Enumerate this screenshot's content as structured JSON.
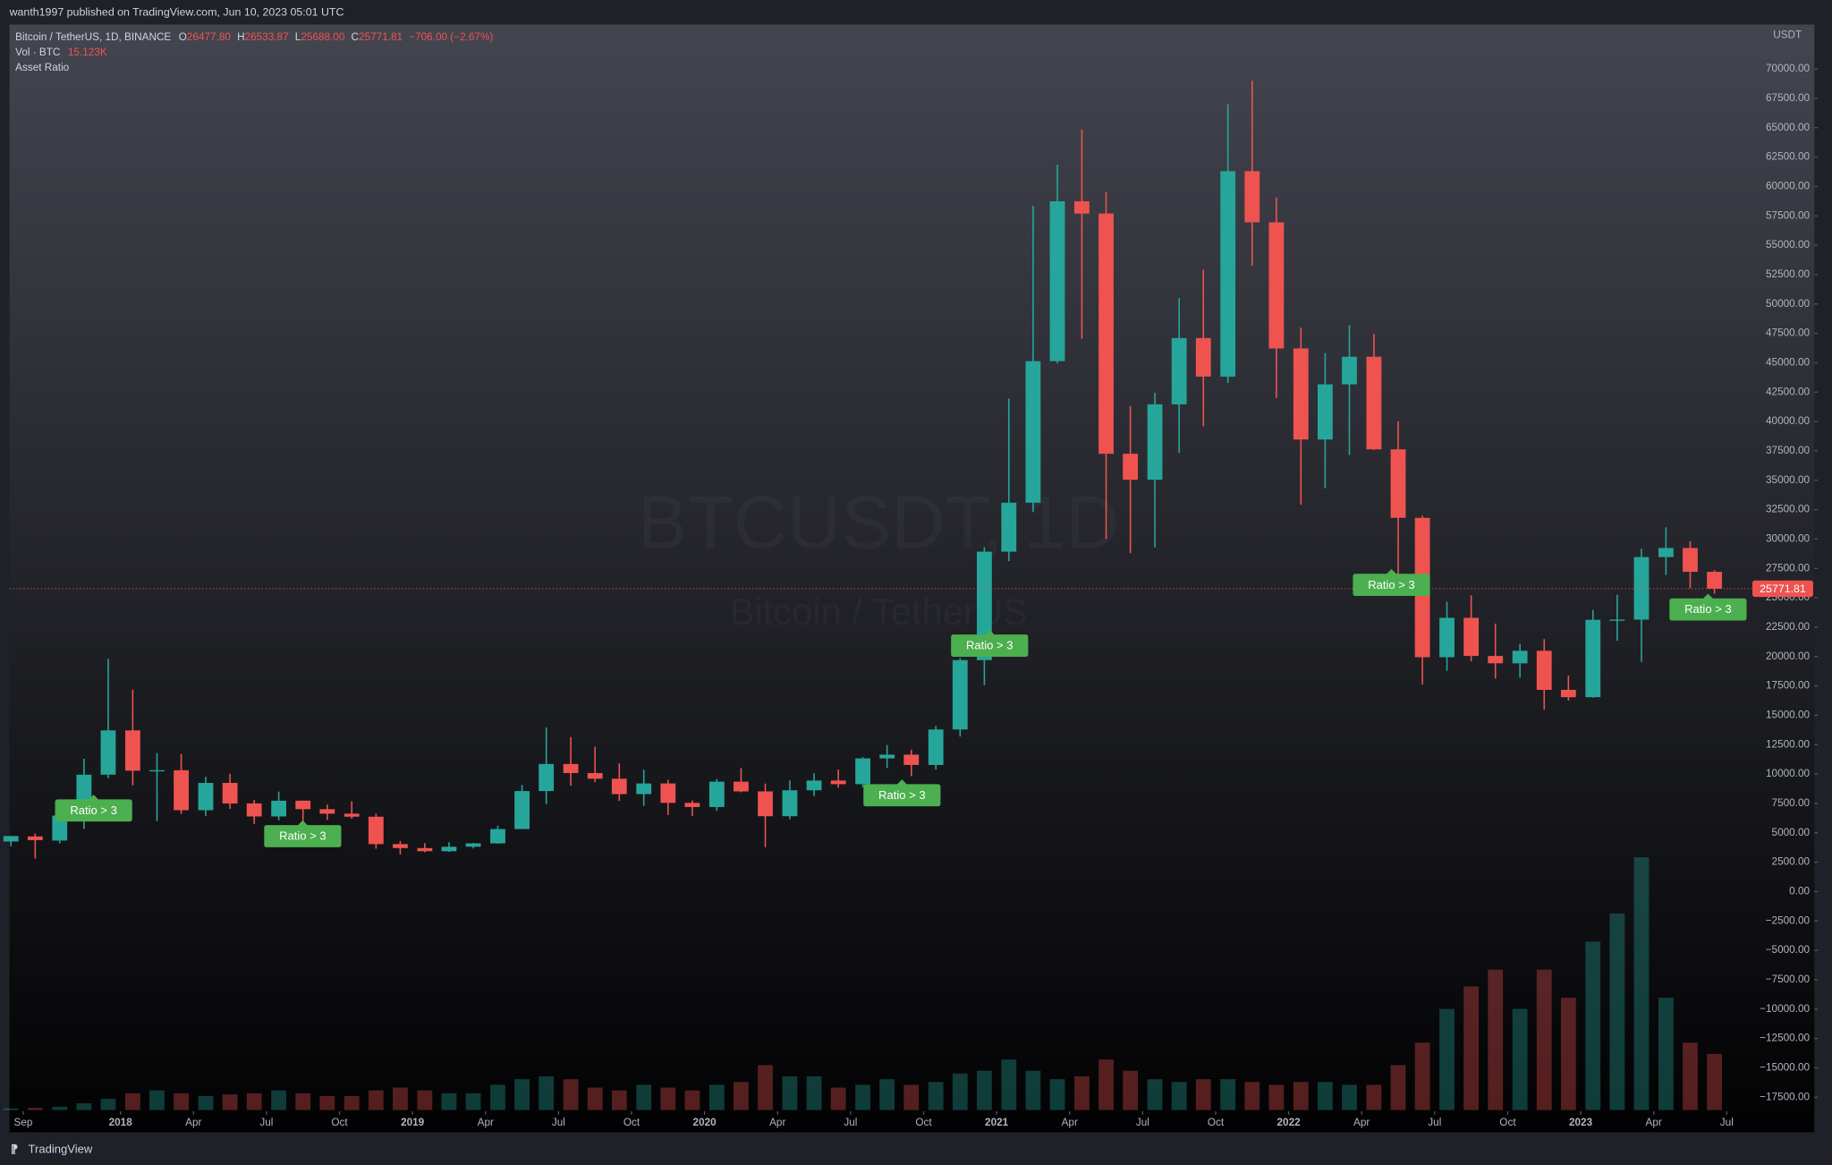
{
  "header": {
    "published": "wanth1997 published on TradingView.com, Jun 10, 2023 05:01 UTC",
    "symbol": "Bitcoin / TetherUS, 1D, BINANCE",
    "o_label": "O",
    "o": "26477.80",
    "h_label": "H",
    "h": "26533.87",
    "l_label": "L",
    "l": "25688.00",
    "c_label": "C",
    "c": "25771.81",
    "change": "−706.00 (−2.67%)",
    "volume_label": "Vol · BTC",
    "volume_value": "15.123K",
    "indicator": "Asset Ratio",
    "watermark_symbol": "BTCUSDT, 1D",
    "watermark_name": "Bitcoin / TetherUS",
    "footer": "TradingView"
  },
  "chart_data": {
    "type": "candlestick",
    "axis_unit": "USDT",
    "up_color": "#26a69a",
    "down_color": "#ef5350",
    "xlim": [
      2017.62,
      2023.576
    ],
    "ylim": [
      -18594,
      73779
    ],
    "xticks": [
      {
        "value": 2017.667,
        "label": "Sep"
      },
      2018,
      {
        "value": 2018.25,
        "label": "Apr"
      },
      {
        "value": 2018.5,
        "label": "Jul"
      },
      {
        "value": 2018.75,
        "label": "Oct"
      },
      2019,
      {
        "value": 2019.25,
        "label": "Apr"
      },
      {
        "value": 2019.5,
        "label": "Jul"
      },
      {
        "value": 2019.75,
        "label": "Oct"
      },
      2020,
      {
        "value": 2020.25,
        "label": "Apr"
      },
      {
        "value": 2020.5,
        "label": "Jul"
      },
      {
        "value": 2020.75,
        "label": "Oct"
      },
      2021,
      {
        "value": 2021.25,
        "label": "Apr"
      },
      {
        "value": 2021.5,
        "label": "Jul"
      },
      {
        "value": 2021.75,
        "label": "Oct"
      },
      2022,
      {
        "value": 2022.25,
        "label": "Apr"
      },
      {
        "value": 2022.5,
        "label": "Jul"
      },
      {
        "value": 2022.75,
        "label": "Oct"
      },
      2023,
      {
        "value": 2023.25,
        "label": "Apr"
      },
      {
        "value": 2023.5,
        "label": "Jul"
      }
    ],
    "yticks": [
      {
        "value": 70000,
        "label": "70000.00"
      },
      {
        "value": 67500,
        "label": "67500.00"
      },
      {
        "value": 65000,
        "label": "65000.00"
      },
      {
        "value": 62500,
        "label": "62500.00"
      },
      {
        "value": 60000,
        "label": "60000.00"
      },
      {
        "value": 57500,
        "label": "57500.00"
      },
      {
        "value": 55000,
        "label": "55000.00"
      },
      {
        "value": 52500,
        "label": "52500.00"
      },
      {
        "value": 50000,
        "label": "50000.00"
      },
      {
        "value": 47500,
        "label": "47500.00"
      },
      {
        "value": 45000,
        "label": "45000.00"
      },
      {
        "value": 42500,
        "label": "42500.00"
      },
      {
        "value": 40000,
        "label": "40000.00"
      },
      {
        "value": 37500,
        "label": "37500.00"
      },
      {
        "value": 35000,
        "label": "35000.00"
      },
      {
        "value": 32500,
        "label": "32500.00"
      },
      {
        "value": 30000,
        "label": "30000.00"
      },
      {
        "value": 27500,
        "label": "27500.00"
      },
      {
        "value": 25000,
        "label": "25000.00"
      },
      {
        "value": 22500,
        "label": "22500.00"
      },
      {
        "value": 20000,
        "label": "20000.00"
      },
      {
        "value": 17500,
        "label": "17500.00"
      },
      {
        "value": 15000,
        "label": "15000.00"
      },
      {
        "value": 12500,
        "label": "12500.00"
      },
      {
        "value": 10000,
        "label": "10000.00"
      },
      {
        "value": 7500,
        "label": "7500.00"
      },
      {
        "value": 5000,
        "label": "5000.00"
      },
      {
        "value": 2500,
        "label": "2500.00"
      },
      {
        "value": 0,
        "label": "0.00"
      },
      {
        "value": -2500,
        "label": "−2500.00"
      },
      {
        "value": -5000,
        "label": "−5000.00"
      },
      {
        "value": -7500,
        "label": "−7500.00"
      },
      {
        "value": -10000,
        "label": "−10000.00"
      },
      {
        "value": -12500,
        "label": "−12500.00"
      },
      {
        "value": -15000,
        "label": "−15000.00"
      },
      {
        "value": -17500,
        "label": "−17500.00"
      }
    ],
    "x": [
      2017.625,
      2017.708,
      2017.792,
      2017.875,
      2017.958,
      2018.042,
      2018.125,
      2018.208,
      2018.292,
      2018.375,
      2018.458,
      2018.542,
      2018.625,
      2018.708,
      2018.792,
      2018.875,
      2018.958,
      2019.042,
      2019.125,
      2019.208,
      2019.292,
      2019.375,
      2019.458,
      2019.542,
      2019.625,
      2019.708,
      2019.792,
      2019.875,
      2019.958,
      2020.042,
      2020.125,
      2020.208,
      2020.292,
      2020.375,
      2020.458,
      2020.542,
      2020.625,
      2020.708,
      2020.792,
      2020.875,
      2020.958,
      2021.042,
      2021.125,
      2021.208,
      2021.292,
      2021.375,
      2021.458,
      2021.542,
      2021.625,
      2021.708,
      2021.792,
      2021.875,
      2021.958,
      2022.042,
      2022.125,
      2022.208,
      2022.292,
      2022.375,
      2022.458,
      2022.542,
      2022.625,
      2022.708,
      2022.792,
      2022.875,
      2022.958,
      2023.042,
      2023.125,
      2023.208,
      2023.292,
      2023.375,
      2023.458
    ],
    "open": [
      4261,
      4690,
      4341,
      6450,
      9948,
      13716,
      10285,
      10325,
      6923,
      9246,
      7500,
      6391,
      7735,
      7011,
      6626,
      6369,
      4041,
      3701,
      3434,
      3814,
      4102,
      5320,
      8555,
      10855,
      10085,
      9600,
      8294,
      9199,
      7547,
      7195,
      9352,
      8523,
      6412,
      8620,
      9448,
      9139,
      11335,
      11650,
      10776,
      13791,
      19695,
      28923,
      33092,
      45134,
      58740,
      57697,
      37254,
      35045,
      41461,
      47100,
      43820,
      61300,
      56950,
      46217,
      38466,
      43161,
      45510,
      37630,
      31801,
      19942,
      23296,
      20048,
      19423,
      20491,
      17165,
      16542,
      23125,
      23141,
      28465,
      29233,
      27211
    ],
    "high": [
      4745,
      4939,
      6470,
      11300,
      19798,
      17176,
      11786,
      11710,
      9765,
      10020,
      7786,
      8507,
      7750,
      7410,
      7680,
      6615,
      4312,
      4120,
      4198,
      4140,
      5600,
      9074,
      13970,
      13147,
      12325,
      10905,
      10370,
      9505,
      7750,
      9578,
      10500,
      9188,
      9460,
      10067,
      10380,
      11444,
      12468,
      12067,
      14100,
      19863,
      29300,
      41950,
      58352,
      61844,
      64854,
      59500,
      41330,
      42448,
      50500,
      52920,
      67000,
      69000,
      59053,
      47990,
      45821,
      48190,
      47444,
      40023,
      31982,
      24668,
      25212,
      22799,
      21085,
      21480,
      18387,
      23960,
      25250,
      29184,
      31000,
      29820,
      27350
    ],
    "low": [
      3850,
      2817,
      4110,
      5325,
      9650,
      9035,
      6000,
      6600,
      6425,
      7032,
      5750,
      6070,
      5880,
      6100,
      6205,
      3652,
      3156,
      3349,
      3373,
      3670,
      4067,
      5320,
      7444,
      9010,
      9320,
      7710,
      7300,
      6515,
      6435,
      6871,
      8451,
      3782,
      6150,
      8117,
      8833,
      8893,
      10518,
      9825,
      10375,
      13195,
      17572,
      28130,
      32296,
      44950,
      47044,
      30000,
      28805,
      29278,
      37332,
      39600,
      43283,
      53256,
      42000,
      32917,
      34322,
      37155,
      37578,
      26700,
      17622,
      18782,
      19600,
      18125,
      18190,
      15476,
      16256,
      16499,
      21351,
      19549,
      26942,
      25811,
      25351
    ],
    "close": [
      4724,
      4378,
      6463,
      9947,
      13716,
      10285,
      10326,
      6923,
      9246,
      7495,
      6391,
      7730,
      7011,
      6626,
      6371,
      4041,
      3702,
      3434,
      3813,
      4103,
      5320,
      8554,
      10854,
      10085,
      9600,
      8293,
      9199,
      7546,
      7194,
      9353,
      8523,
      6410,
      8620,
      9448,
      9138,
      11335,
      11650,
      10776,
      13791,
      19695,
      28923,
      33092,
      45135,
      58741,
      57694,
      37253,
      35045,
      41461,
      47100,
      43824,
      61299,
      56950,
      46216,
      38466,
      43160,
      45510,
      37630,
      31801,
      19942,
      23293,
      20050,
      19423,
      20491,
      17164,
      16542,
      23125,
      23141,
      28465,
      29233,
      27211,
      25771.81
    ],
    "volume": [
      3,
      4,
      6,
      12,
      20,
      30,
      35,
      30,
      25,
      28,
      30,
      35,
      30,
      25,
      25,
      35,
      40,
      35,
      30,
      30,
      45,
      55,
      60,
      55,
      40,
      35,
      45,
      40,
      35,
      45,
      50,
      80,
      60,
      60,
      40,
      45,
      55,
      45,
      50,
      65,
      70,
      90,
      70,
      55,
      60,
      90,
      70,
      55,
      50,
      55,
      55,
      50,
      45,
      50,
      50,
      45,
      45,
      80,
      120,
      180,
      220,
      250,
      180,
      250,
      200,
      300,
      350,
      450,
      200,
      120,
      100
    ],
    "volume_lim": [
      0,
      520
    ],
    "last_price": 25771.81,
    "annotations": [
      {
        "x": 2017.908,
        "y": 8246,
        "text": "Ratio > 3"
      },
      {
        "x": 2018.624,
        "y": 6058,
        "text": "Ratio > 3"
      },
      {
        "x": 2020.676,
        "y": 9540,
        "text": "Ratio > 3"
      },
      {
        "x": 2020.976,
        "y": 22270,
        "text": "Ratio > 3"
      },
      {
        "x": 2022.352,
        "y": 27440,
        "text": "Ratio > 3"
      },
      {
        "x": 2023.436,
        "y": 25350,
        "text": "Ratio > 3"
      }
    ]
  }
}
